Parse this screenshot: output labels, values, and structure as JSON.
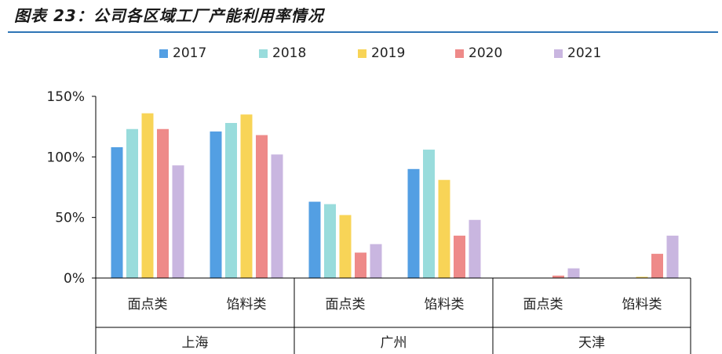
{
  "title": "图表 23：公司各区域工厂产能利用率情况",
  "colors": [
    "#539fe3",
    "#99dcdc",
    "#f8d457",
    "#ee8a89",
    "#c9b6e0"
  ],
  "chart_data": {
    "type": "bar",
    "groups": [
      "上海",
      "广州",
      "天津"
    ],
    "categories": [
      "面点类",
      "馅料类",
      "面点类",
      "馅料类",
      "面点类",
      "馅料类"
    ],
    "category_group_index": [
      0,
      0,
      1,
      1,
      2,
      2
    ],
    "series": [
      {
        "name": "2017",
        "values": [
          1.08,
          1.21,
          0.63,
          0.9,
          0.0,
          0.0
        ]
      },
      {
        "name": "2018",
        "values": [
          1.23,
          1.28,
          0.61,
          1.06,
          0.0,
          0.0
        ]
      },
      {
        "name": "2019",
        "values": [
          1.36,
          1.35,
          0.52,
          0.81,
          0.0,
          0.01
        ]
      },
      {
        "name": "2020",
        "values": [
          1.23,
          1.18,
          0.21,
          0.35,
          0.02,
          0.2
        ]
      },
      {
        "name": "2021",
        "values": [
          0.93,
          1.02,
          0.28,
          0.48,
          0.08,
          0.35
        ]
      }
    ],
    "ylim": [
      0,
      1.5
    ],
    "yticks": [
      {
        "value": 1.5,
        "label": "150%"
      },
      {
        "value": 1.0,
        "label": "100%"
      },
      {
        "value": 0.5,
        "label": "50%"
      },
      {
        "value": 0.0,
        "label": "0%"
      }
    ],
    "grid": false,
    "legend_position": "top"
  }
}
